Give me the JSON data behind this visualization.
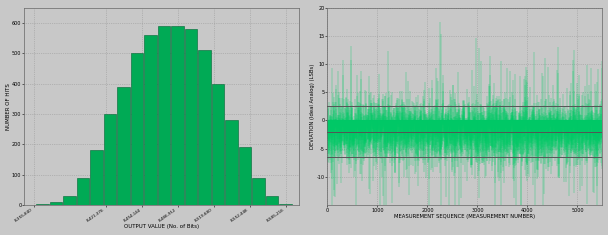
{
  "hist_bar_color": "#00AA55",
  "hist_bar_edge": "#006633",
  "hist_x_label": "OUTPUT VALUE (No. of Bits)",
  "hist_y_label": "NUMBER OF HITS",
  "hist_centers": [
    8364032,
    8376320,
    8388608,
    8400896,
    8413184,
    8425472,
    8437760,
    8450048,
    8462336,
    8474624,
    8486912,
    8499200,
    8511488,
    8523776,
    8536064,
    8548352,
    8560640,
    8572928,
    8585216
  ],
  "hist_values": [
    2,
    10,
    30,
    90,
    180,
    300,
    390,
    500,
    560,
    590,
    590,
    580,
    510,
    400,
    280,
    190,
    90,
    30,
    2
  ],
  "hist_xlim": [
    8347136,
    8597504
  ],
  "hist_ylim": [
    0,
    650
  ],
  "hist_yticks": [
    0,
    100,
    200,
    300,
    400,
    500,
    600
  ],
  "hist_xticks": [
    8355840,
    8421376,
    8454144,
    8486912,
    8519680,
    8552448,
    8585216
  ],
  "hist_xtick_labels": [
    "8,355,840",
    "8,421,376",
    "8,454,144",
    "8,486,912",
    "8,519,680",
    "8,552,448",
    "8,585,216"
  ],
  "scatter_bar_color": "#00CC66",
  "scatter_bar_edge": "#003322",
  "scatter_x_label": "MEASUREMENT SEQUENCE (MEASUREMENT NUMBER)",
  "scatter_y_label": "DEVIATION (Ideal Analog) (LSBs)",
  "scatter_xlim": [
    0,
    5500
  ],
  "scatter_ylim": [
    -15,
    20
  ],
  "scatter_yticks": [
    -10,
    -5,
    0,
    5,
    10,
    15,
    20
  ],
  "scatter_xticks": [
    0,
    1000,
    2000,
    3000,
    4000,
    5000
  ],
  "scatter_hlines": [
    -6.5,
    -2.0,
    2.5
  ],
  "bg_color": "#C8C8C8",
  "grid_color": "#999999",
  "n_scatter": 5500,
  "scatter_seed": 42
}
